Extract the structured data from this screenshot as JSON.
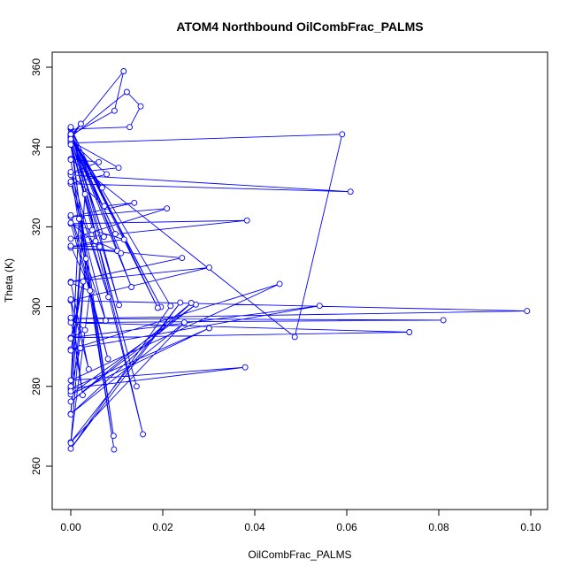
{
  "chart_data": {
    "type": "line",
    "title": "ATOM4 Northbound OilCombFrac_PALMS",
    "xlabel": "OilCombFrac_PALMS",
    "ylabel": "Theta (K)",
    "xlim": [
      0,
      0.1
    ],
    "ylim": [
      250,
      361
    ],
    "x_ticks": [
      0.0,
      0.02,
      0.04,
      0.06,
      0.08,
      0.1
    ],
    "x_tick_labels": [
      "0.00",
      "0.02",
      "0.04",
      "0.06",
      "0.08",
      "0.10"
    ],
    "y_ticks": [
      260,
      280,
      300,
      320,
      340,
      360
    ],
    "y_tick_labels": [
      "260",
      "280",
      "300",
      "320",
      "340",
      "360"
    ],
    "grid": false,
    "legend": "none",
    "series": [
      {
        "color": "#0000ff",
        "marker": "open-circle",
        "x": [
          0.0015,
          0.0,
          0.0,
          0.0,
          0.0,
          0.0,
          0.0,
          0.0,
          0.0,
          0.0,
          0.0005,
          0.0,
          0.0,
          0.0,
          0.0,
          0.0,
          0.0,
          0.0,
          0.0,
          0.0,
          0.0,
          0.0,
          0.0,
          0.0,
          0.0,
          0.0,
          0.0,
          0.0,
          0.0,
          0.0,
          0.0,
          0.0,
          0.0,
          0.0,
          0.0,
          0.0,
          0.0,
          0.0,
          0.0,
          0.0,
          0.0,
          0.0,
          0.0,
          0.0,
          0.0,
          0.0,
          0.0,
          0.0,
          0.0,
          0.0,
          0.0,
          0.0,
          0.0,
          0.0,
          0.0,
          0.0,
          0.0,
          0.0,
          0.0,
          0.0,
          0.0,
          0.0,
          0.0,
          0.0,
          0.0,
          0.0,
          0.0,
          0.0,
          0.0,
          0.0,
          0.0,
          0.0,
          0.0,
          0.0,
          0.0,
          0.0,
          0.0,
          0.0,
          0.0,
          0.0,
          0.0,
          0.0,
          0.0,
          0.0,
          0.0,
          0.0,
          0.0,
          0.0,
          0.0,
          0.0,
          0.0,
          0.0,
          0.0,
          0.0,
          0.0,
          0.0,
          0.0,
          0.0,
          0.0,
          0.0
        ],
        "y": [
          345.5,
          344.6,
          343.4,
          342.7,
          341.1,
          337.3,
          336.3,
          333.1,
          331.4,
          330.8,
          341.9,
          322.8,
          321.1,
          317.0,
          314.8,
          306.2,
          301.5,
          297.0,
          296.1,
          292.2,
          289.5,
          288.5,
          281.5,
          279.5,
          278.0,
          276.2,
          273.1,
          265.8,
          264.4,
          342.5,
          342.3,
          341.2,
          341.5,
          344.6,
          343.2,
          342.0,
          346.3,
          340.7,
          336.0,
          332.7,
          331.6,
          322.2,
          320.3,
          314.9,
          303.3,
          297.1,
          292.4,
          290.0,
          288.8,
          278.7,
          276.4,
          263.7,
          342.1,
          336.6,
          332.5,
          333.9,
          330.9,
          317.4,
          315.0,
          306.0,
          301.3,
          296.8,
          291.9,
          289.3,
          281.0,
          279.7,
          275.6,
          273.4,
          266.3,
          264.9,
          343.5,
          342.6,
          341.9,
          342.1,
          342.8,
          343.9,
          344.1,
          345.0,
          344.8,
          343.0,
          342.2,
          341.6,
          341.3,
          340.8,
          337.0,
          336.8,
          333.4,
          332.2,
          331.1,
          330.5,
          323.0,
          321.6,
          317.2,
          315.3,
          306.5,
          301.8,
          296.5,
          292.0,
          289.0,
          280.2
        ]
      }
    ],
    "points": [
      [
        0.0,
        342.0
      ],
      [
        0.0022,
        345.8
      ],
      [
        0.0,
        343.0
      ],
      [
        0.0095,
        349.1
      ],
      [
        0.0115,
        359.0
      ],
      [
        0.0,
        342.5
      ],
      [
        0.0122,
        353.8
      ],
      [
        0.0152,
        350.2
      ],
      [
        0.0128,
        345.0
      ],
      [
        0.0,
        344.5
      ],
      [
        0.0,
        341.0
      ],
      [
        0.059,
        343.2
      ],
      [
        0.0487,
        292.4
      ],
      [
        0.0,
        337.0
      ],
      [
        0.0061,
        336.2
      ],
      [
        0.0,
        333.5
      ],
      [
        0.0104,
        334.8
      ],
      [
        0.0,
        341.5
      ],
      [
        0.0078,
        333.2
      ],
      [
        0.0,
        330.8
      ],
      [
        0.0608,
        328.8
      ],
      [
        0.0,
        333.0
      ],
      [
        0.0073,
        325.2
      ],
      [
        0.0138,
        326.0
      ],
      [
        0.0,
        322.5
      ],
      [
        0.0209,
        324.6
      ],
      [
        0.0,
        317.0
      ],
      [
        0.0383,
        321.6
      ],
      [
        0.0,
        320.8
      ],
      [
        0.0047,
        319.2
      ],
      [
        0.0116,
        316.8
      ],
      [
        0.0,
        315.0
      ],
      [
        0.0054,
        316.4
      ],
      [
        0.0101,
        314.0
      ],
      [
        0.0,
        314.8
      ],
      [
        0.0242,
        312.2
      ],
      [
        0.0,
        306.2
      ],
      [
        0.0301,
        309.8
      ],
      [
        0.0,
        301.5
      ],
      [
        0.0992,
        298.9
      ],
      [
        0.0,
        297.0
      ],
      [
        0.081,
        296.6
      ],
      [
        0.0,
        296.0
      ],
      [
        0.0736,
        293.6
      ],
      [
        0.0,
        292.2
      ],
      [
        0.0541,
        300.2
      ],
      [
        0.0,
        289.3
      ],
      [
        0.0454,
        305.7
      ],
      [
        0.0,
        281.5
      ],
      [
        0.0379,
        284.8
      ],
      [
        0.0,
        279.5
      ],
      [
        0.0301,
        294.6
      ],
      [
        0.0,
        278.0
      ],
      [
        0.0272,
        300.5
      ],
      [
        0.0,
        276.2
      ],
      [
        0.0262,
        300.9
      ],
      [
        0.0,
        273.1
      ],
      [
        0.0247,
        296.0
      ],
      [
        0.0,
        266.0
      ],
      [
        0.0238,
        301.0
      ],
      [
        0.0,
        264.4
      ],
      [
        0.0217,
        300.2
      ],
      [
        0.0,
        342.8
      ],
      [
        0.0196,
        299.9
      ],
      [
        0.0,
        343.4
      ],
      [
        0.0189,
        299.7
      ],
      [
        0.0,
        344.8
      ],
      [
        0.0157,
        268.0
      ],
      [
        0.0,
        341.2
      ],
      [
        0.0143,
        280.0
      ],
      [
        0.0,
        340.6
      ],
      [
        0.0093,
        267.6
      ],
      [
        0.0,
        336.8
      ],
      [
        0.0094,
        264.2
      ],
      [
        0.0,
        333.7
      ],
      [
        0.0082,
        302.4
      ],
      [
        0.0,
        331.3
      ],
      [
        0.0076,
        296.5
      ],
      [
        0.0,
        322.9
      ],
      [
        0.0081,
        286.9
      ],
      [
        0.0,
        321.0
      ],
      [
        0.0063,
        315.0
      ],
      [
        0.0,
        315.2
      ],
      [
        0.0045,
        303.7
      ],
      [
        0.0,
        306.0
      ],
      [
        0.0039,
        284.3
      ],
      [
        0.0,
        301.8
      ],
      [
        0.0026,
        277.8
      ],
      [
        0.0,
        297.2
      ],
      [
        0.0031,
        294.1
      ],
      [
        0.0,
        292.0
      ],
      [
        0.0027,
        306.3
      ],
      [
        0.0,
        289.0
      ],
      [
        0.0021,
        289.6
      ],
      [
        0.0,
        280.0
      ],
      [
        0.0018,
        322.0
      ],
      [
        0.0,
        278.8
      ],
      [
        0.0031,
        328.2
      ],
      [
        0.0,
        273.0
      ],
      [
        0.0033,
        312.0
      ],
      [
        0.0,
        265.8
      ],
      [
        0.0042,
        304.0
      ],
      [
        0.0,
        343.0
      ],
      [
        0.0068,
        329.8
      ],
      [
        0.0,
        342.1
      ],
      [
        0.0105,
        300.4
      ],
      [
        0.0,
        345.0
      ],
      [
        0.0132,
        304.9
      ],
      [
        0.0,
        342.6
      ],
      [
        0.0109,
        313.4
      ],
      [
        0.0,
        342.4
      ],
      [
        0.0097,
        318.2
      ],
      [
        0.0,
        343.2
      ],
      [
        0.0072,
        317.5
      ],
      [
        0.0,
        342.0
      ]
    ]
  }
}
